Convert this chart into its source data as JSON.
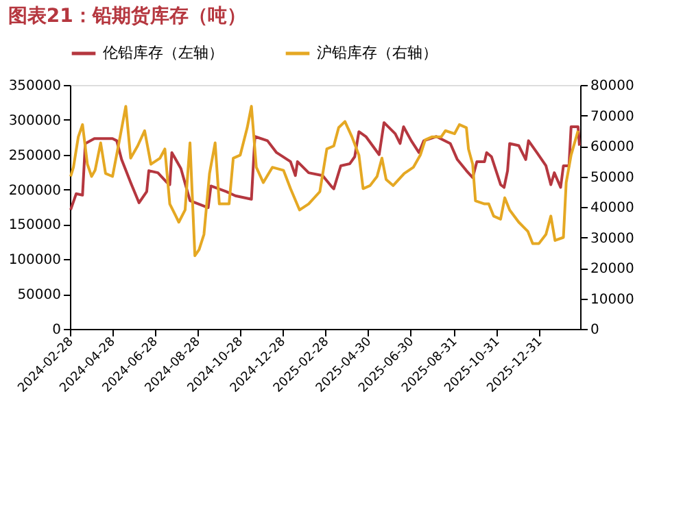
{
  "chart_data": {
    "type": "line",
    "title": "图表21：铅期货库存（吨）",
    "series": [
      {
        "name": "伦铅库存（左轴）",
        "color": "#b5373f",
        "axis": "y",
        "x": [
          "2024-02-29",
          "2024-03-08",
          "2024-03-17",
          "2024-03-21",
          "2024-04-03",
          "2024-04-29",
          "2024-05-05",
          "2024-05-12",
          "2024-05-25",
          "2024-06-06",
          "2024-06-17",
          "2024-06-20",
          "2024-07-03",
          "2024-07-16",
          "2024-07-20",
          "2024-07-23",
          "2024-08-05",
          "2024-08-18",
          "2024-09-13",
          "2024-09-17",
          "2024-10-09",
          "2024-10-22",
          "2024-11-14",
          "2024-11-19",
          "2024-12-07",
          "2024-12-20",
          "2025-01-09",
          "2025-01-16",
          "2025-01-19",
          "2025-02-04",
          "2025-02-24",
          "2025-03-09",
          "2025-03-12",
          "2025-03-22",
          "2025-04-04",
          "2025-04-11",
          "2025-04-17",
          "2025-04-27",
          "2025-05-16",
          "2025-05-23",
          "2025-06-08",
          "2025-06-15",
          "2025-06-20",
          "2025-07-01",
          "2025-07-12",
          "2025-07-19",
          "2025-08-06",
          "2025-08-26",
          "2025-09-05",
          "2025-09-18",
          "2025-09-27",
          "2025-10-03",
          "2025-10-14",
          "2025-10-17",
          "2025-10-24",
          "2025-11-06",
          "2025-11-11",
          "2025-11-16",
          "2025-11-19",
          "2025-12-02",
          "2025-12-12",
          "2025-12-16",
          "2025-12-28",
          "2026-01-10",
          "2026-01-17",
          "2026-01-22",
          "2026-01-31",
          "2026-02-04",
          "2026-02-12",
          "2026-02-15",
          "2026-02-25",
          "2026-02-27"
        ],
        "values": [
          171000,
          194000,
          192000,
          266000,
          273000,
          273000,
          270000,
          243000,
          210000,
          181000,
          197000,
          227000,
          224000,
          210000,
          207000,
          253000,
          230000,
          184000,
          174000,
          205000,
          197000,
          191000,
          186000,
          276000,
          270000,
          253000,
          240000,
          220000,
          240000,
          224000,
          220000,
          204000,
          201000,
          234000,
          237000,
          247000,
          283000,
          276000,
          250000,
          296000,
          280000,
          266000,
          290000,
          270000,
          253000,
          270000,
          276000,
          266000,
          243000,
          227000,
          217000,
          240000,
          240000,
          253000,
          247000,
          207000,
          203000,
          227000,
          266000,
          263000,
          243000,
          270000,
          253000,
          234000,
          207000,
          224000,
          203000,
          234000,
          234000,
          290000,
          290000,
          263000
        ]
      },
      {
        "name": "沪铅库存（右轴）",
        "color": "#e5a823",
        "axis": "y2",
        "x": [
          "2024-02-29",
          "2024-03-04",
          "2024-03-11",
          "2024-03-17",
          "2024-03-24",
          "2024-03-30",
          "2024-04-04",
          "2024-04-12",
          "2024-04-19",
          "2024-04-29",
          "2024-05-09",
          "2024-05-18",
          "2024-05-25",
          "2024-06-04",
          "2024-06-14",
          "2024-06-23",
          "2024-07-06",
          "2024-07-13",
          "2024-07-20",
          "2024-08-02",
          "2024-08-11",
          "2024-08-18",
          "2024-08-25",
          "2024-08-31",
          "2024-09-07",
          "2024-09-15",
          "2024-09-23",
          "2024-09-29",
          "2024-10-13",
          "2024-10-19",
          "2024-10-29",
          "2024-11-08",
          "2024-11-14",
          "2024-11-21",
          "2024-12-01",
          "2024-12-14",
          "2024-12-30",
          "2025-01-09",
          "2025-01-22",
          "2025-02-04",
          "2025-02-20",
          "2025-03-02",
          "2025-03-12",
          "2025-03-19",
          "2025-03-28",
          "2025-04-07",
          "2025-04-17",
          "2025-04-23",
          "2025-05-03",
          "2025-05-13",
          "2025-05-20",
          "2025-05-26",
          "2025-06-05",
          "2025-06-21",
          "2025-07-04",
          "2025-07-14",
          "2025-07-21",
          "2025-07-31",
          "2025-08-13",
          "2025-08-19",
          "2025-09-01",
          "2025-09-08",
          "2025-09-18",
          "2025-09-21",
          "2025-09-27",
          "2025-10-01",
          "2025-10-14",
          "2025-10-20",
          "2025-10-27",
          "2025-11-06",
          "2025-11-12",
          "2025-11-19",
          "2025-12-02",
          "2025-12-15",
          "2025-12-22",
          "2025-12-31",
          "2026-01-10",
          "2026-01-17",
          "2026-01-23",
          "2026-02-04",
          "2026-02-08",
          "2026-02-15",
          "2026-02-25"
        ],
        "values": [
          50000,
          53000,
          63000,
          67000,
          54000,
          50000,
          52000,
          61000,
          51000,
          50000,
          62000,
          73000,
          56000,
          60000,
          65000,
          54000,
          56000,
          59000,
          41000,
          35000,
          39000,
          61000,
          24000,
          26000,
          31000,
          51000,
          61000,
          41000,
          41000,
          56000,
          57000,
          66000,
          73000,
          53000,
          48000,
          53000,
          52000,
          46000,
          39000,
          41000,
          45000,
          59000,
          60000,
          66000,
          68000,
          63000,
          57000,
          46000,
          47000,
          50000,
          56000,
          49000,
          47000,
          51000,
          53000,
          57000,
          62000,
          63000,
          63000,
          65000,
          64000,
          67000,
          66000,
          59000,
          54000,
          42000,
          41000,
          41000,
          37000,
          36000,
          43000,
          39000,
          35000,
          32000,
          28000,
          28000,
          31000,
          37000,
          29000,
          30000,
          48000,
          57000,
          65000
        ]
      }
    ],
    "xlim": [
      "2024-02-28",
      "2026-02-28"
    ],
    "xticks": [
      "2024-02-28",
      "2024-04-28",
      "2024-06-28",
      "2024-08-28",
      "2024-10-28",
      "2024-12-28",
      "2025-02-28",
      "2025-04-30",
      "2025-06-30",
      "2025-08-31",
      "2025-10-31",
      "2025-12-31"
    ],
    "ylim": [
      0,
      350000
    ],
    "yticks": [
      0,
      50000,
      100000,
      150000,
      200000,
      250000,
      300000,
      350000
    ],
    "y2lim": [
      0,
      80000
    ],
    "y2ticks": [
      0,
      10000,
      20000,
      30000,
      40000,
      50000,
      60000,
      70000,
      80000
    ],
    "grid": false,
    "legend": "top",
    "marker": "none",
    "line_style": "solid"
  }
}
